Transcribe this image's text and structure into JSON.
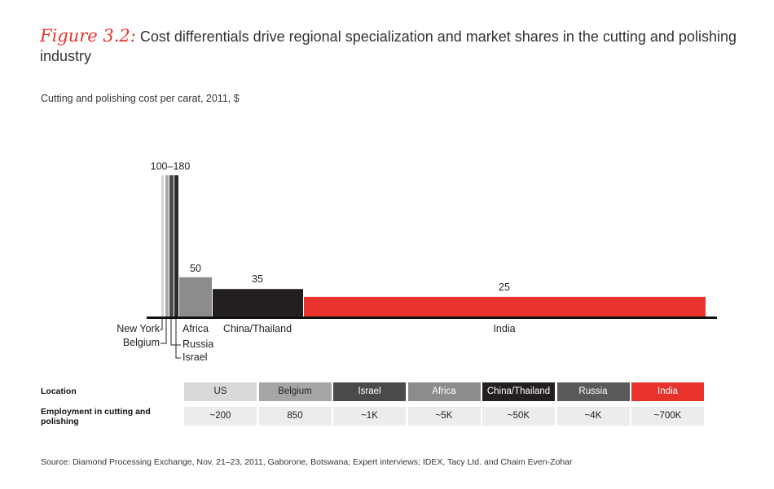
{
  "figure": {
    "label": "Figure 3.2:",
    "title": "Cost differentials drive regional specialization and market shares in the cutting and polishing industry"
  },
  "subtitle": "Cutting and polishing cost per carat, 2011, $",
  "chart_data": {
    "type": "bar",
    "title": "Cutting and polishing cost per carat, 2011, $",
    "categories": [
      "New York",
      "Belgium",
      "Russia",
      "Israel",
      "Africa",
      "China/Thailand",
      "India"
    ],
    "values": [
      180,
      180,
      180,
      180,
      50,
      35,
      25
    ],
    "colors": [
      "#d4d4d4",
      "#a8a8a8",
      "#4a4a4a",
      "#2a2a2a",
      "#8c8c8c",
      "#231f20",
      "#e8322b"
    ],
    "data_labels": [
      {
        "text": "100–180",
        "group": "high-cost"
      },
      {
        "text": "50",
        "category": "Africa"
      },
      {
        "text": "35",
        "category": "China/Thailand"
      },
      {
        "text": "25",
        "category": "India"
      }
    ],
    "ylim": [
      0,
      200
    ],
    "grid": false,
    "legend": "none"
  },
  "table": {
    "row_labels": [
      "Location",
      "Employment in cutting and polishing"
    ],
    "columns": [
      {
        "location": "US",
        "employment": "~200",
        "bg": "#d9d9d9",
        "fg": "#222222"
      },
      {
        "location": "Belgium",
        "employment": "850",
        "bg": "#a6a6a6",
        "fg": "#222222"
      },
      {
        "location": "Israel",
        "employment": "~1K",
        "bg": "#4a4a4a",
        "fg": "#ffffff"
      },
      {
        "location": "Africa",
        "employment": "~5K",
        "bg": "#8c8c8c",
        "fg": "#ffffff"
      },
      {
        "location": "China/Thailand",
        "employment": "~50K",
        "bg": "#231f20",
        "fg": "#ffffff"
      },
      {
        "location": "Russia",
        "employment": "~4K",
        "bg": "#595959",
        "fg": "#ffffff"
      },
      {
        "location": "India",
        "employment": "~700K",
        "bg": "#e8322b",
        "fg": "#ffffff"
      }
    ],
    "employment_bg": "#ececec"
  },
  "source": "Source:  Diamond Processing Exchange, Nov. 21–23, 2011, Gaborone, Botswana; Expert interviews; IDEX, Tacy Ltd. and Chaim Even-Zohar"
}
